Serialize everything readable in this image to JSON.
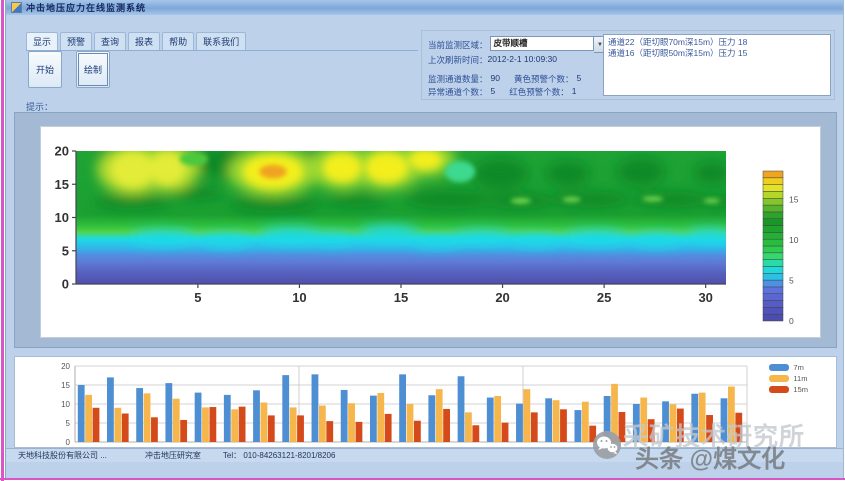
{
  "window": {
    "title": "冲击地压应力在线监测系统"
  },
  "menu_tabs": [
    {
      "id": "display",
      "label": "显示"
    },
    {
      "id": "warning",
      "label": "预警"
    },
    {
      "id": "query",
      "label": "查询"
    },
    {
      "id": "report",
      "label": "报表"
    },
    {
      "id": "help",
      "label": "帮助"
    },
    {
      "id": "contact",
      "label": "联系我们"
    }
  ],
  "toolbar": {
    "start_label": "开始",
    "draw_label": "绘制"
  },
  "info_panel": {
    "area_label": "当前监测区域：",
    "area_value": "皮带顺槽",
    "dropdown_arrow": "▼",
    "refresh_label": "上次刷新时间：",
    "refresh_value": "2012-2-1 10:09:30",
    "stats": [
      {
        "label": "监测通道数量：",
        "value": "90"
      },
      {
        "label": "黄色预警个数：",
        "value": "5"
      },
      {
        "label": "异常通道个数：",
        "value": "5"
      },
      {
        "label": "红色预警个数：",
        "value": "1"
      }
    ],
    "alerts": [
      "通道22（距切眼70m深15m）压力 18",
      "通道16（距切眼50m深15m）压力 15"
    ]
  },
  "hint": {
    "label": "提示："
  },
  "chart_data": [
    {
      "type": "heatmap",
      "title": "",
      "x_ticks": [
        5,
        10,
        15,
        20,
        25,
        30
      ],
      "y_ticks": [
        0,
        5,
        10,
        15,
        20
      ],
      "x_range": [
        -1,
        31
      ],
      "y_range": [
        0,
        20
      ],
      "colorbar": {
        "ticks": [
          0,
          5,
          10,
          15
        ],
        "range": [
          0,
          18.5
        ],
        "colors": [
          "#4c4cae",
          "#5153ba",
          "#555cc6",
          "#5a66d2",
          "#5e72de",
          "#4b92e4",
          "#2cc0e4",
          "#20d8d8",
          "#28dcaa",
          "#33d96e",
          "#2fcb4e",
          "#29bd40",
          "#24b036",
          "#1ea42e",
          "#199726",
          "#2da32c",
          "#55b42c",
          "#84c52b",
          "#b4d628",
          "#e0e422",
          "#f0ce1f",
          "#efa51d"
        ]
      },
      "base_bands": [
        {
          "pos": 0,
          "color": "#1ea335"
        },
        {
          "pos": 48,
          "color": "#1ba031"
        },
        {
          "pos": 56,
          "color": "#2fbe3c"
        },
        {
          "pos": 61,
          "color": "#55d24a"
        },
        {
          "pos": 64,
          "color": "#2bdcb4"
        },
        {
          "pos": 67,
          "color": "#20d6e8"
        },
        {
          "pos": 73,
          "color": "#31b6e8"
        },
        {
          "pos": 78,
          "color": "#5090e0"
        },
        {
          "pos": 84,
          "color": "#5f78d6"
        },
        {
          "pos": 92,
          "color": "#5560bc"
        },
        {
          "pos": 100,
          "color": "#4e50ac"
        }
      ],
      "features": {
        "hotspots": [
          {
            "x": 1.8,
            "y": 17.2,
            "rx": 1.05,
            "ry": 2.6,
            "tone": "pale"
          },
          {
            "x": 3.5,
            "y": 17.4,
            "rx": 0.85,
            "ry": 2.4,
            "tone": "pale"
          },
          {
            "x": 8.7,
            "y": 16.9,
            "rx": 1.5,
            "ry": 2.6,
            "tone": "bright",
            "core": true
          },
          {
            "x": 12.1,
            "y": 17.5,
            "rx": 0.95,
            "ry": 2.2,
            "tone": "bright"
          },
          {
            "x": 14.3,
            "y": 17.5,
            "rx": 1.05,
            "ry": 2.3,
            "tone": "bright"
          },
          {
            "x": 16.2,
            "y": 18.7,
            "rx": 0.8,
            "ry": 1.5,
            "tone": "bright"
          }
        ],
        "dark_patches": [
          {
            "x": 1.0,
            "y": 19.0,
            "rx": 0.9,
            "ry": 1.3
          },
          {
            "x": 6.4,
            "y": 18.2,
            "rx": 1.7,
            "ry": 2.3
          },
          {
            "x": 10.4,
            "y": 18.4,
            "rx": 0.85,
            "ry": 1.9
          },
          {
            "x": 13.2,
            "y": 18.6,
            "rx": 0.6,
            "ry": 1.5
          },
          {
            "x": 5.0,
            "y": 13.6,
            "rx": 1.3,
            "ry": 1.0
          },
          {
            "x": 1.8,
            "y": 12.3,
            "rx": 1.9,
            "ry": 1.1
          },
          {
            "x": 8.8,
            "y": 11.9,
            "rx": 2.3,
            "ry": 1.2
          },
          {
            "x": 12.8,
            "y": 12.4,
            "rx": 1.5,
            "ry": 0.9
          },
          {
            "x": 17.4,
            "y": 12.7,
            "rx": 2.2,
            "ry": 1.4
          },
          {
            "x": 20.8,
            "y": 12.5,
            "rx": 1.7,
            "ry": 1.2
          },
          {
            "x": 24.3,
            "y": 12.7,
            "rx": 2.0,
            "ry": 1.2
          },
          {
            "x": 28.3,
            "y": 12.7,
            "rx": 1.9,
            "ry": 1.2
          },
          {
            "x": 30.8,
            "y": 12.4,
            "rx": 1.0,
            "ry": 0.9
          },
          {
            "x": 19.9,
            "y": 16.6,
            "rx": 1.4,
            "ry": 2.4
          },
          {
            "x": 23.2,
            "y": 16.6,
            "rx": 1.1,
            "ry": 2.0
          },
          {
            "x": 26.8,
            "y": 16.9,
            "rx": 1.2,
            "ry": 2.2
          },
          {
            "x": 30.3,
            "y": 16.7,
            "rx": 0.9,
            "ry": 1.8
          }
        ],
        "cyan_bumps": [
          {
            "x": 3.3,
            "y": 7.0,
            "rx": 1.6,
            "ry": 1.1
          },
          {
            "x": 6.4,
            "y": 6.6,
            "rx": 1.3,
            "ry": 1.0
          },
          {
            "x": 9.6,
            "y": 7.3,
            "rx": 1.6,
            "ry": 1.2
          },
          {
            "x": 11.6,
            "y": 6.9,
            "rx": 1.2,
            "ry": 0.9
          },
          {
            "x": 14.4,
            "y": 7.6,
            "rx": 1.5,
            "ry": 1.2
          },
          {
            "x": 16.8,
            "y": 6.4,
            "rx": 1.2,
            "ry": 0.9
          },
          {
            "x": 19.0,
            "y": 7.1,
            "rx": 1.5,
            "ry": 1.0
          },
          {
            "x": 21.6,
            "y": 6.6,
            "rx": 1.3,
            "ry": 0.9
          },
          {
            "x": 24.6,
            "y": 7.0,
            "rx": 1.6,
            "ry": 1.1
          },
          {
            "x": 27.6,
            "y": 6.7,
            "rx": 1.3,
            "ry": 1.0
          },
          {
            "x": 30.2,
            "y": 7.3,
            "rx": 1.2,
            "ry": 1.0
          }
        ],
        "light_spots": [
          {
            "x": 20.9,
            "y": 12.5,
            "rx": 0.5,
            "ry": 0.45,
            "color": "#6ed44e"
          },
          {
            "x": 23.4,
            "y": 12.7,
            "rx": 0.45,
            "ry": 0.4,
            "color": "#6ed44e"
          },
          {
            "x": 27.4,
            "y": 12.8,
            "rx": 0.5,
            "ry": 0.4,
            "color": "#6ed44e"
          },
          {
            "x": 30.3,
            "y": 12.5,
            "rx": 0.4,
            "ry": 0.35,
            "color": "#6ed44e"
          },
          {
            "x": 17.9,
            "y": 16.9,
            "rx": 0.75,
            "ry": 1.6,
            "color": "#3ed98e"
          },
          {
            "x": 4.8,
            "y": 18.8,
            "rx": 0.7,
            "ry": 1.0,
            "color": "#49c93e"
          }
        ]
      }
    },
    {
      "type": "bar",
      "ylim": [
        0,
        20
      ],
      "y_ticks": [
        0,
        5,
        10,
        15,
        20
      ],
      "grid": true,
      "legend_position": "right",
      "series": [
        {
          "name": "7m",
          "color": "#4e8ed2",
          "values": [
            15,
            17,
            14.2,
            15.5,
            13,
            12.4,
            13.6,
            17.6,
            17.8,
            13.7,
            12.2,
            17.8,
            12.3,
            17.3,
            11.7,
            10.1,
            11.5,
            8.4,
            12.1,
            10,
            10.7,
            12.7,
            11.5
          ]
        },
        {
          "name": "11m",
          "color": "#f7b64b",
          "values": [
            12.4,
            9,
            12.8,
            11.4,
            9.1,
            8.6,
            10.4,
            9.1,
            9.6,
            10.2,
            12.9,
            10,
            13.9,
            7.8,
            12.1,
            13.9,
            11,
            10.6,
            15.3,
            11.7,
            9.9,
            13,
            14.6
          ]
        },
        {
          "name": "15m",
          "color": "#d54a1b",
          "values": [
            9,
            7.5,
            6.5,
            5.8,
            9.2,
            9.3,
            7,
            7,
            5.5,
            5.3,
            7.4,
            5.6,
            8.7,
            4.4,
            5.1,
            7.8,
            8.6,
            4.3,
            7.9,
            6,
            8.8,
            7.1,
            7.7
          ]
        }
      ]
    }
  ],
  "statusbar": {
    "company": "天地科技股份有限公司 ...",
    "department": "冲击地压研究室",
    "tel_label": "Tel：",
    "tel_value": "010-84263121-8201/8206"
  },
  "watermark": {
    "line1": "采矿技术研究所",
    "line2": "头条 @煤文化"
  }
}
